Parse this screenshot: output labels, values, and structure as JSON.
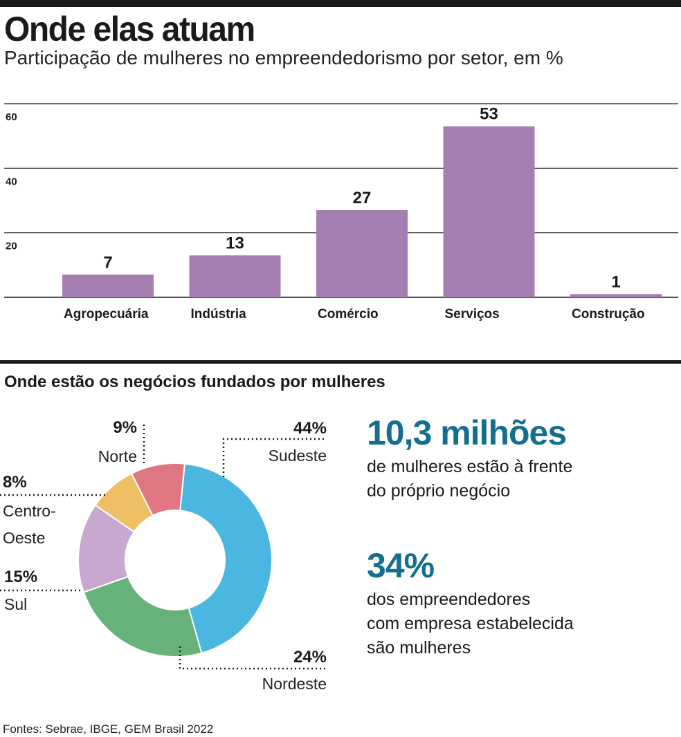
{
  "header": {
    "title": "Onde elas atuam",
    "subtitle": "Participação de mulheres no empreendedorismo por setor, em %"
  },
  "colors": {
    "bar": "#a57fb2",
    "grid": "#1a1a1a",
    "stat_accent": "#136f8f",
    "sudeste": "#4ab7e0",
    "nordeste": "#67b27a",
    "sul": "#c7a9cf",
    "centro_oeste": "#eebf63",
    "norte": "#e07681"
  },
  "chart_data": [
    {
      "type": "bar",
      "title": "Onde elas atuam",
      "subtitle": "Participação de mulheres no empreendedorismo por setor, em %",
      "categories": [
        "Agropecuária",
        "Indústria",
        "Comércio",
        "Serviços",
        "Construção"
      ],
      "values": [
        7,
        13,
        27,
        53,
        1
      ],
      "data_labels": [
        "7",
        "13",
        "27",
        "53",
        "1"
      ],
      "yticks": [
        20,
        40,
        60
      ],
      "ylim": [
        0,
        60
      ],
      "grid": true,
      "legend": "none"
    },
    {
      "type": "pie",
      "title": "Onde estão os negócios fundados por mulheres",
      "donut": true,
      "slices": [
        {
          "label": "Sudeste",
          "value": 44,
          "value_label": "44%"
        },
        {
          "label": "Nordeste",
          "value": 24,
          "value_label": "24%"
        },
        {
          "label": "Sul",
          "value": 15,
          "value_label": "15%"
        },
        {
          "label": "Centro-Oeste",
          "label_lines": [
            "Centro-",
            "Oeste"
          ],
          "value": 8,
          "value_label": "8%"
        },
        {
          "label": "Norte",
          "value": 9,
          "value_label": "9%"
        }
      ],
      "legend": "callouts"
    }
  ],
  "stats": [
    {
      "value": "10,3 milhões",
      "lines": [
        "de mulheres estão à frente",
        "do próprio negócio"
      ]
    },
    {
      "value": "34%",
      "lines": [
        "dos empreendedores",
        "com empresa estabelecida",
        "são mulheres"
      ]
    }
  ],
  "source": "Fontes: Sebrae, IBGE, GEM Brasil 2022"
}
